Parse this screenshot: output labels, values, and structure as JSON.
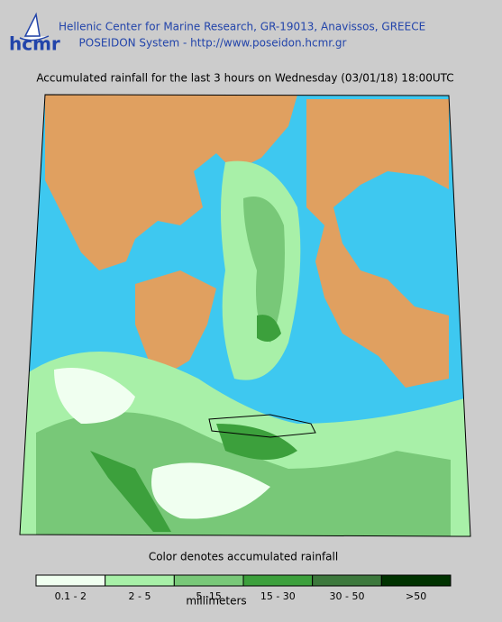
{
  "header": {
    "logo": "hcmr",
    "line1": "Hellenic Center for Marine Research, GR-19013, Anavissos, GREECE",
    "line2": "POSEIDON System - http://www.poseidon.hcmr.gr"
  },
  "title": "Accumulated rainfall for the last 3 hours on Wednesday (03/01/18) 18:00UTC",
  "legend": {
    "caption": "Color denotes accumulated rainfall",
    "units": "millimeters",
    "items": [
      {
        "label": "0.1 - 2",
        "color": "#f0fff0"
      },
      {
        "label": "2 - 5",
        "color": "#a8f0a8"
      },
      {
        "label": "5 -15",
        "color": "#78c878"
      },
      {
        "label": "15 - 30",
        "color": "#3ca03c"
      },
      {
        "label": "30 - 50",
        "color": "#3c783c"
      },
      {
        "label": ">50",
        "color": "#003200"
      }
    ]
  }
}
